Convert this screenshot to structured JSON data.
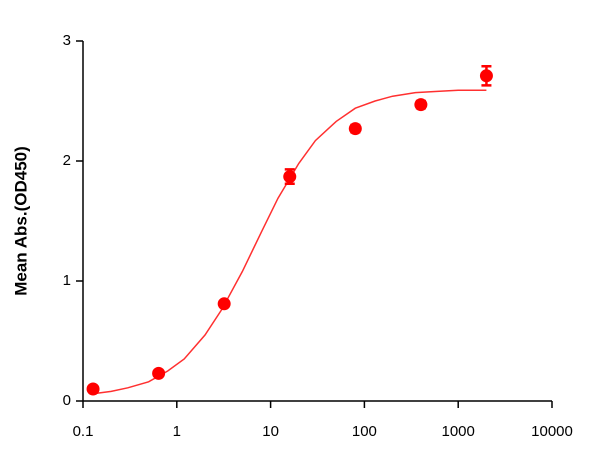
{
  "chart_data": {
    "type": "scatter",
    "y_label": "Mean Abs.(OD450)",
    "x_log": true,
    "xlim": [
      0.1,
      10000
    ],
    "xticks": [
      0.1,
      1,
      10,
      100,
      1000,
      10000
    ],
    "ylim": [
      0,
      3
    ],
    "yticks": [
      0,
      1,
      2,
      3
    ],
    "color": "#ff0000",
    "x": [
      0.128,
      0.64,
      3.2,
      16,
      80,
      400,
      2000
    ],
    "values": [
      0.1,
      0.23,
      0.81,
      1.87,
      2.27,
      2.47,
      2.71
    ],
    "errors": [
      0.02,
      0.02,
      0.02,
      0.06,
      0.03,
      0.03,
      0.08
    ],
    "fit": {
      "color": "#ff3030",
      "x": [
        0.128,
        0.2,
        0.3,
        0.5,
        0.8,
        1.2,
        2,
        3,
        5,
        8,
        12,
        20,
        30,
        50,
        80,
        130,
        200,
        350,
        600,
        1000,
        2000
      ],
      "values": [
        0.06,
        0.08,
        0.11,
        0.16,
        0.25,
        0.35,
        0.55,
        0.76,
        1.08,
        1.41,
        1.69,
        1.98,
        2.17,
        2.33,
        2.44,
        2.5,
        2.54,
        2.57,
        2.58,
        2.59,
        2.59
      ]
    }
  }
}
